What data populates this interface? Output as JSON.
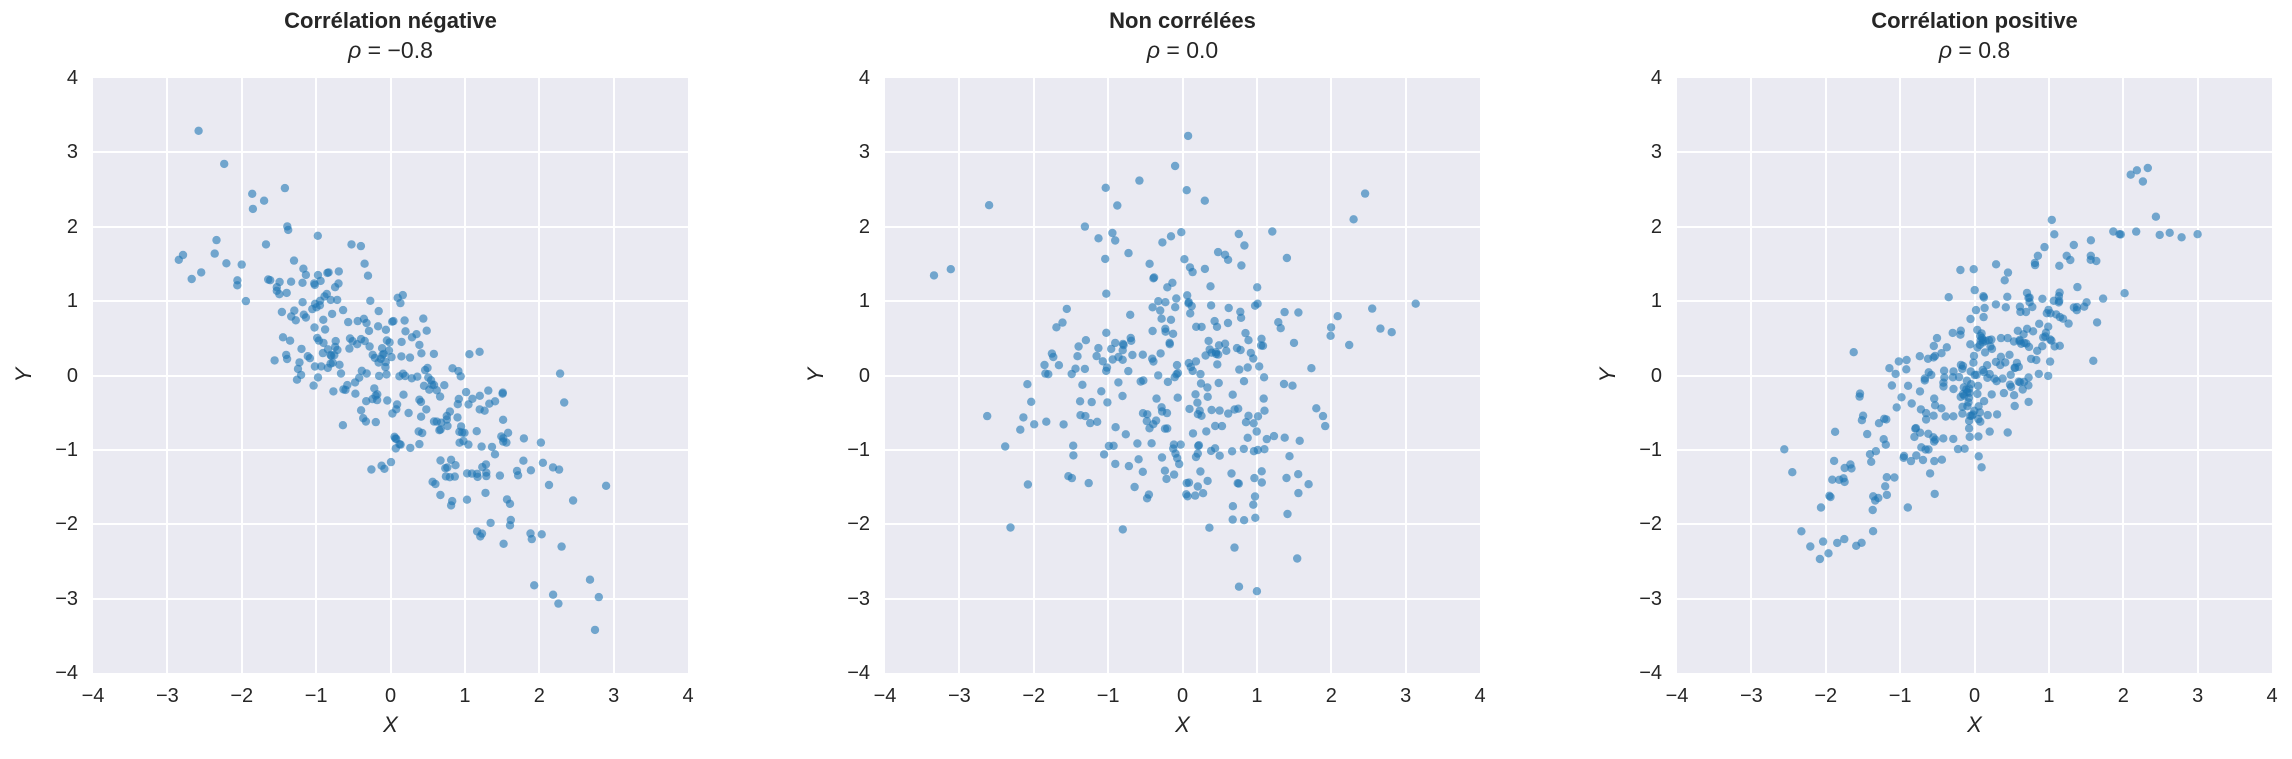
{
  "figure": {
    "page_background": "#ffffff",
    "plot_background": "#eaeaf2",
    "grid_color": "#ffffff",
    "point_color": "#1f77b4",
    "point_opacity": 0.6,
    "point_radius": 4.2,
    "text_color": "#262626"
  },
  "chart_data": [
    {
      "type": "scatter",
      "title": "Corrélation négative",
      "subtitle_symbol": "ρ",
      "subtitle_rest": " = −0.8",
      "rho": -0.8,
      "n_points": 300,
      "seed": 11,
      "xlabel": "X",
      "ylabel": "Y",
      "xlim": [
        -4,
        4
      ],
      "ylim": [
        -4,
        4
      ],
      "xticks": [
        -4,
        -3,
        -2,
        -1,
        0,
        1,
        2,
        3,
        4
      ],
      "yticks": [
        -4,
        -3,
        -2,
        -1,
        0,
        1,
        2,
        3,
        4
      ],
      "grid": true,
      "legend": false,
      "notable_points": [
        [
          -2.58,
          3.29
        ],
        [
          -2.79,
          1.62
        ],
        [
          -2.34,
          1.82
        ],
        [
          -1.85,
          2.24
        ],
        [
          -1.7,
          2.35
        ],
        [
          -1.42,
          2.52
        ],
        [
          2.75,
          -3.42
        ],
        [
          2.3,
          -2.3
        ],
        [
          1.9,
          -2.2
        ]
      ]
    },
    {
      "type": "scatter",
      "title": "Non corrélées",
      "subtitle_symbol": "ρ",
      "subtitle_rest": " = 0.0",
      "rho": 0.0,
      "n_points": 300,
      "seed": 22,
      "xlabel": "X",
      "ylabel": "Y",
      "xlim": [
        -4,
        4
      ],
      "ylim": [
        -4,
        4
      ],
      "xticks": [
        -4,
        -3,
        -2,
        -1,
        0,
        1,
        2,
        3,
        4
      ],
      "yticks": [
        -4,
        -3,
        -2,
        -1,
        0,
        1,
        2,
        3,
        4
      ],
      "grid": true,
      "legend": false,
      "notable_points": [
        [
          0.76,
          -2.84
        ],
        [
          1.0,
          -2.9
        ],
        [
          -0.58,
          2.62
        ],
        [
          -2.6,
          2.29
        ],
        [
          0.3,
          2.35
        ],
        [
          2.3,
          2.1
        ],
        [
          2.55,
          0.9
        ]
      ]
    },
    {
      "type": "scatter",
      "title": "Corrélation positive",
      "subtitle_symbol": "ρ",
      "subtitle_rest": " = 0.8",
      "rho": 0.8,
      "n_points": 300,
      "seed": 33,
      "xlabel": "X",
      "ylabel": "Y",
      "xlim": [
        -4,
        4
      ],
      "ylim": [
        -4,
        4
      ],
      "xticks": [
        -4,
        -3,
        -2,
        -1,
        0,
        1,
        2,
        3,
        4
      ],
      "yticks": [
        -4,
        -3,
        -2,
        -1,
        0,
        1,
        2,
        3,
        4
      ],
      "grid": true,
      "legend": false,
      "notable_points": [
        [
          2.33,
          2.79
        ],
        [
          2.1,
          2.7
        ],
        [
          1.95,
          1.9
        ],
        [
          2.49,
          1.89
        ],
        [
          3.0,
          1.9
        ],
        [
          -1.59,
          -2.29
        ],
        [
          -1.75,
          -2.2
        ],
        [
          -2.45,
          -1.3
        ]
      ]
    }
  ]
}
